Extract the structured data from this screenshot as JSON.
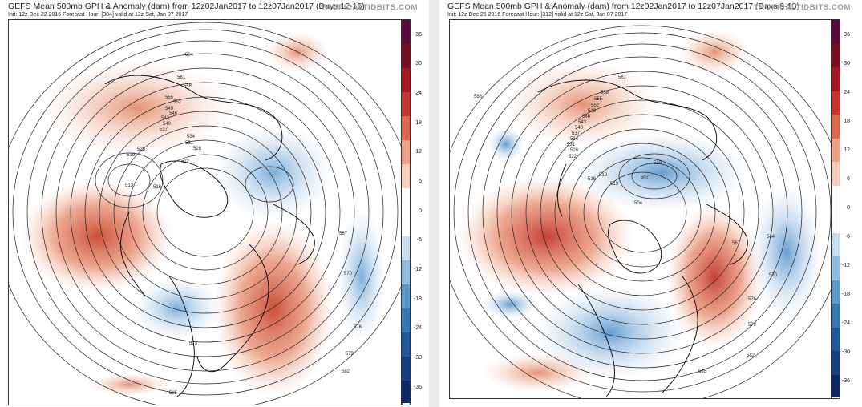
{
  "panels": [
    {
      "title": "GEFS Mean 500mb GPH & Anomaly (dam) from 12z02Jan2017 to 12z07Jan2017 (Days 12-16)",
      "init_line": "Init: 12z Dec 22 2016   Forecast Hour: [384]   valid at 12z Sat, Jan 07 2017",
      "brand": "TROPICALTIDBITS.COM",
      "contour_labels": [
        "582",
        "576",
        "570",
        "567",
        "564",
        "561",
        "558",
        "555",
        "552",
        "549",
        "546",
        "543",
        "540",
        "537",
        "534",
        "531",
        "528",
        "525",
        "522",
        "519",
        "516",
        "513",
        "585",
        "579",
        "573"
      ]
    },
    {
      "title": "GEFS Mean 500mb GPH & Anomaly (dam) from 12z02Jan2017 to 12z07Jan2017 (Days 9-13)",
      "init_line": "Init: 12z Dec 25 2016   Forecast Hour: [312]   valid at 12z Sat, Jan 07 2017",
      "brand": "TROPICALTIDBITS.COM",
      "contour_labels": [
        "588",
        "582",
        "576",
        "570",
        "567",
        "564",
        "561",
        "558",
        "555",
        "552",
        "549",
        "546",
        "543",
        "540",
        "537",
        "534",
        "531",
        "528",
        "522",
        "519",
        "516",
        "513",
        "510",
        "507",
        "504",
        "585",
        "579"
      ]
    }
  ],
  "colorbar": {
    "ticks": [
      "36",
      "30",
      "24",
      "18",
      "12",
      "6",
      "0",
      "-6",
      "-12",
      "-18",
      "-24",
      "-30",
      "-36"
    ],
    "colors": [
      "#5a0a3c",
      "#7a0d1f",
      "#a3161f",
      "#c5352d",
      "#dd6a4e",
      "#eea184",
      "#f6cdb8",
      "#ffffff",
      "#ffffff",
      "#c6dcef",
      "#8fbde0",
      "#5a99cc",
      "#3677b5",
      "#1f589c",
      "#143f80",
      "#0b2a64"
    ],
    "positive_color": "#e8906a",
    "negative_color": "#7fb3dd"
  }
}
